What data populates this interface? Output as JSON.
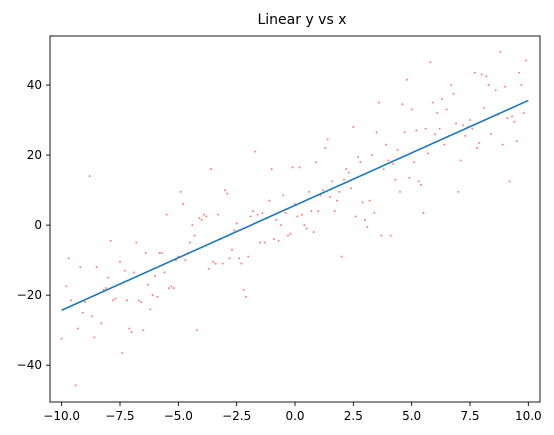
{
  "chart_data": {
    "type": "scatter",
    "title": "Linear y vs x",
    "xlabel": "",
    "ylabel": "",
    "xlim": [
      -10.5,
      10.5
    ],
    "ylim": [
      -50.5,
      54.0
    ],
    "x_ticks": [
      -10.0,
      -7.5,
      -5.0,
      -2.5,
      0.0,
      2.5,
      5.0,
      7.5,
      10.0
    ],
    "x_tick_labels": [
      "−10.0",
      "−7.5",
      "−5.0",
      "−2.5",
      "0.0",
      "2.5",
      "5.0",
      "7.5",
      "10.0"
    ],
    "y_ticks": [
      -40,
      -20,
      0,
      20,
      40
    ],
    "y_tick_labels": [
      "−40",
      "−20",
      "0",
      "20",
      "40"
    ],
    "grid": false,
    "legend": "none",
    "series": [
      {
        "kind": "scatter",
        "color": "#ff7f7f",
        "points": [
          [
            -10.0,
            -32.4
          ],
          [
            -9.8,
            -17.5
          ],
          [
            -9.7,
            -9.5
          ],
          [
            -9.6,
            -21.5
          ],
          [
            -9.4,
            -45.7
          ],
          [
            -9.3,
            -29.5
          ],
          [
            -9.2,
            -12.0
          ],
          [
            -9.1,
            -25.0
          ],
          [
            -9.0,
            -22.0
          ],
          [
            -8.8,
            14.0
          ],
          [
            -8.7,
            -26.0
          ],
          [
            -8.6,
            -32.0
          ],
          [
            -8.5,
            -12.0
          ],
          [
            -8.3,
            -28.0
          ],
          [
            -8.2,
            -18.5
          ],
          [
            -8.1,
            -18.0
          ],
          [
            -8.0,
            -15.0
          ],
          [
            -7.9,
            -4.5
          ],
          [
            -7.8,
            -21.5
          ],
          [
            -7.7,
            -21.0
          ],
          [
            -7.5,
            -10.5
          ],
          [
            -7.4,
            -36.5
          ],
          [
            -7.3,
            -13.0
          ],
          [
            -7.2,
            -21.5
          ],
          [
            -7.1,
            -29.5
          ],
          [
            -7.0,
            -30.5
          ],
          [
            -6.9,
            -13.5
          ],
          [
            -6.8,
            -5.0
          ],
          [
            -6.7,
            -21.5
          ],
          [
            -6.6,
            -22.0
          ],
          [
            -6.5,
            -30.0
          ],
          [
            -6.4,
            -8.0
          ],
          [
            -6.3,
            -17.0
          ],
          [
            -6.2,
            -24.0
          ],
          [
            -6.1,
            -20.0
          ],
          [
            -6.0,
            -14.5
          ],
          [
            -5.9,
            -20.5
          ],
          [
            -5.8,
            -8.0
          ],
          [
            -5.7,
            -8.0
          ],
          [
            -5.6,
            -13.5
          ],
          [
            -5.5,
            3.0
          ],
          [
            -5.4,
            -18.0
          ],
          [
            -5.3,
            -17.5
          ],
          [
            -5.2,
            -18.0
          ],
          [
            -5.1,
            -10.0
          ],
          [
            -5.0,
            -9.0
          ],
          [
            -4.9,
            9.5
          ],
          [
            -4.8,
            6.0
          ],
          [
            -4.7,
            -10.0
          ],
          [
            -4.6,
            -8.0
          ],
          [
            -4.5,
            -5.0
          ],
          [
            -4.4,
            0.0
          ],
          [
            -4.3,
            -3.0
          ],
          [
            -4.2,
            -30.0
          ],
          [
            -4.1,
            2.0
          ],
          [
            -4.0,
            1.5
          ],
          [
            -3.9,
            3.0
          ],
          [
            -3.8,
            2.5
          ],
          [
            -3.7,
            -12.5
          ],
          [
            -3.6,
            16.0
          ],
          [
            -3.5,
            -10.5
          ],
          [
            -3.4,
            -11.0
          ],
          [
            -3.3,
            3.0
          ],
          [
            -3.2,
            -4.0
          ],
          [
            -3.1,
            -11.0
          ],
          [
            -3.0,
            10.0
          ],
          [
            -2.9,
            9.0
          ],
          [
            -2.8,
            -9.5
          ],
          [
            -2.7,
            -7.0
          ],
          [
            -2.6,
            -1.5
          ],
          [
            -2.5,
            0.5
          ],
          [
            -2.4,
            -9.5
          ],
          [
            -2.3,
            -11.0
          ],
          [
            -2.2,
            -18.5
          ],
          [
            -2.1,
            -20.5
          ],
          [
            -2.0,
            -9.0
          ],
          [
            -1.9,
            2.5
          ],
          [
            -1.8,
            4.0
          ],
          [
            -1.7,
            21.0
          ],
          [
            -1.6,
            3.0
          ],
          [
            -1.5,
            -5.0
          ],
          [
            -1.4,
            3.5
          ],
          [
            -1.3,
            -5.0
          ],
          [
            -1.2,
            2.0
          ],
          [
            -1.1,
            7.0
          ],
          [
            -1.0,
            16.0
          ],
          [
            -0.9,
            -4.0
          ],
          [
            -0.8,
            1.5
          ],
          [
            -0.7,
            -4.5
          ],
          [
            -0.6,
            0.0
          ],
          [
            -0.5,
            8.5
          ],
          [
            -0.4,
            3.5
          ],
          [
            -0.3,
            -3.0
          ],
          [
            -0.2,
            -2.5
          ],
          [
            -0.1,
            16.5
          ],
          [
            0.0,
            6.0
          ],
          [
            0.1,
            2.5
          ],
          [
            0.2,
            16.5
          ],
          [
            0.3,
            3.0
          ],
          [
            0.4,
            0.0
          ],
          [
            0.5,
            -1.0
          ],
          [
            0.6,
            9.5
          ],
          [
            0.7,
            4.0
          ],
          [
            0.8,
            -2.0
          ],
          [
            0.9,
            18.0
          ],
          [
            1.0,
            4.0
          ],
          [
            1.1,
            8.5
          ],
          [
            1.2,
            10.0
          ],
          [
            1.3,
            22.0
          ],
          [
            1.4,
            24.5
          ],
          [
            1.5,
            8.0
          ],
          [
            1.6,
            12.5
          ],
          [
            1.7,
            4.0
          ],
          [
            1.8,
            7.0
          ],
          [
            1.9,
            9.5
          ],
          [
            2.0,
            -9.0
          ],
          [
            2.1,
            13.0
          ],
          [
            2.2,
            16.0
          ],
          [
            2.3,
            15.0
          ],
          [
            2.4,
            10.5
          ],
          [
            2.5,
            28.0
          ],
          [
            2.6,
            2.5
          ],
          [
            2.7,
            19.5
          ],
          [
            2.8,
            18.0
          ],
          [
            2.9,
            6.5
          ],
          [
            3.0,
            1.5
          ],
          [
            3.1,
            -0.5
          ],
          [
            3.2,
            7.0
          ],
          [
            3.3,
            20.0
          ],
          [
            3.4,
            3.5
          ],
          [
            3.5,
            26.5
          ],
          [
            3.6,
            35.0
          ],
          [
            3.7,
            -3.0
          ],
          [
            3.8,
            16.0
          ],
          [
            3.9,
            23.0
          ],
          [
            4.0,
            18.5
          ],
          [
            4.1,
            -3.0
          ],
          [
            4.2,
            17.5
          ],
          [
            4.3,
            13.0
          ],
          [
            4.4,
            21.5
          ],
          [
            4.5,
            9.5
          ],
          [
            4.6,
            34.5
          ],
          [
            4.7,
            26.5
          ],
          [
            4.8,
            41.5
          ],
          [
            4.9,
            13.5
          ],
          [
            5.0,
            33.0
          ],
          [
            5.1,
            18.0
          ],
          [
            5.2,
            27.0
          ],
          [
            5.3,
            12.5
          ],
          [
            5.4,
            11.5
          ],
          [
            5.5,
            3.5
          ],
          [
            5.6,
            27.5
          ],
          [
            5.7,
            20.5
          ],
          [
            5.8,
            46.5
          ],
          [
            5.9,
            35.0
          ],
          [
            6.0,
            26.0
          ],
          [
            6.1,
            32.0
          ],
          [
            6.2,
            27.5
          ],
          [
            6.3,
            36.0
          ],
          [
            6.4,
            23.0
          ],
          [
            6.5,
            33.0
          ],
          [
            6.6,
            25.5
          ],
          [
            6.7,
            40.0
          ],
          [
            6.8,
            37.5
          ],
          [
            6.9,
            29.0
          ],
          [
            7.0,
            9.5
          ],
          [
            7.1,
            18.5
          ],
          [
            7.2,
            28.5
          ],
          [
            7.3,
            25.5
          ],
          [
            7.4,
            28.0
          ],
          [
            7.5,
            30.0
          ],
          [
            7.6,
            27.5
          ],
          [
            7.7,
            43.5
          ],
          [
            7.8,
            22.0
          ],
          [
            7.9,
            23.5
          ],
          [
            8.0,
            43.0
          ],
          [
            8.1,
            33.5
          ],
          [
            8.2,
            42.5
          ],
          [
            8.3,
            40.0
          ],
          [
            8.4,
            26.0
          ],
          [
            8.5,
            31.0
          ],
          [
            8.6,
            38.5
          ],
          [
            8.7,
            31.5
          ],
          [
            8.8,
            49.5
          ],
          [
            8.9,
            23.0
          ],
          [
            9.0,
            39.5
          ],
          [
            9.1,
            30.5
          ],
          [
            9.2,
            12.5
          ],
          [
            9.3,
            31.0
          ],
          [
            9.4,
            29.5
          ],
          [
            9.5,
            24.0
          ],
          [
            9.6,
            43.5
          ],
          [
            9.7,
            40.0
          ],
          [
            9.8,
            32.0
          ],
          [
            9.9,
            47.0
          ]
        ]
      },
      {
        "kind": "line",
        "color": "#1f77b4",
        "x": [
          -10.0,
          10.0
        ],
        "y": [
          -24.3,
          35.6
        ]
      }
    ]
  }
}
